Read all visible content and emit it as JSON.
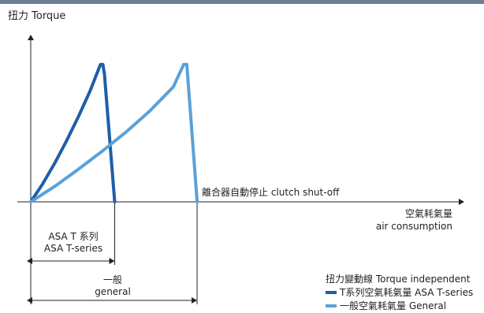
{
  "chart_data": {
    "type": "line",
    "ylabel": "扭力 Torque",
    "xlabel_zh": "空氣耗氣量",
    "xlabel_en": "air consumption",
    "annotation": "離合器自動停止  clutch shut-off",
    "series": [
      {
        "name": "T系列空氣耗氣量 ASA T-series",
        "color": "#1f5ea8",
        "x": [
          0,
          0.75,
          1.5,
          2.25,
          3.0,
          3.75,
          4.4,
          4.55,
          4.65,
          5.3
        ],
        "y": [
          0,
          2.8,
          6.0,
          9.5,
          13.3,
          17.4,
          21.5,
          21.5,
          20.0,
          0
        ]
      },
      {
        "name": "一般空氣耗氣量 General",
        "color": "#5aa1d8",
        "x": [
          0,
          1.5,
          3.0,
          4.5,
          6.0,
          7.5,
          9.0,
          9.65,
          9.85,
          10.5
        ],
        "y": [
          0,
          2.4,
          5.1,
          7.9,
          10.9,
          14.2,
          18.0,
          21.5,
          21.5,
          0
        ]
      }
    ],
    "xlim": [
      0,
      27
    ],
    "ylim": [
      0,
      26
    ],
    "grid": false,
    "legend_title": "扭力變動線 Torque independent",
    "legend_placement": "bottom-right",
    "dimensions": [
      {
        "label_zh": "ASA T 系列",
        "label_en": "ASA T-series",
        "from": 0,
        "to": 5.3
      },
      {
        "label_zh": "一般",
        "label_en": "general",
        "from": 0,
        "to": 10.5
      }
    ]
  },
  "colors": {
    "axis": "#222222",
    "bar": "#6e7f93",
    "dark_blue": "#1f5ea8",
    "light_blue": "#5aa1d8"
  }
}
